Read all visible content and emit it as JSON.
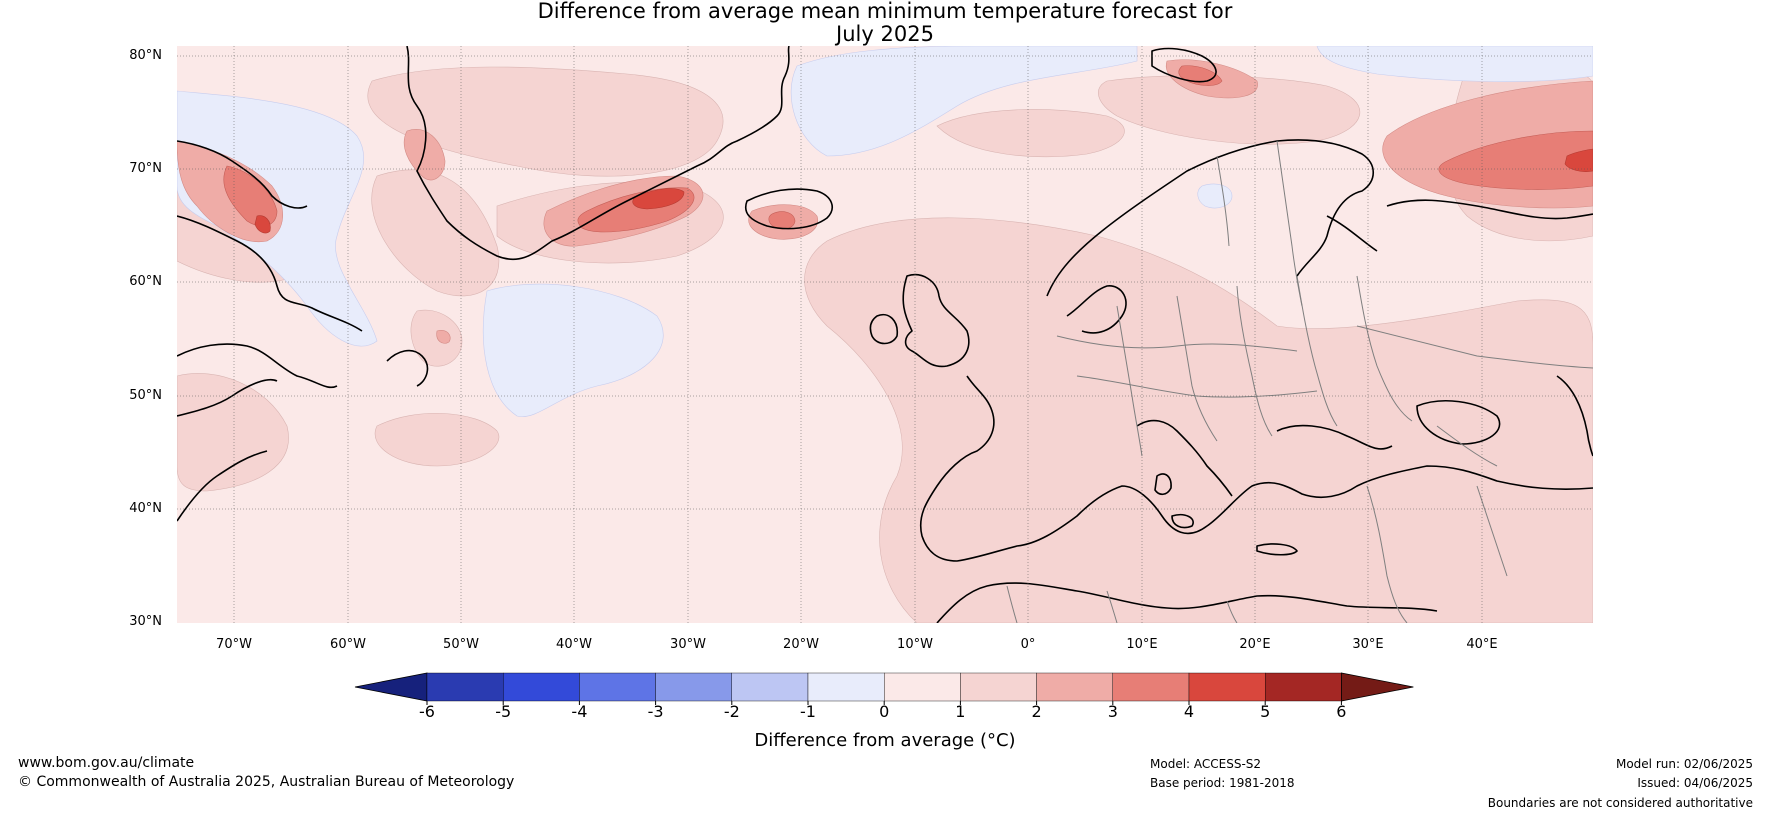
{
  "title": {
    "line1": "Difference from average mean minimum temperature forecast for",
    "line2": "July 2025"
  },
  "map": {
    "lat_labels": [
      "80°N",
      "70°N",
      "60°N",
      "50°N",
      "40°N",
      "30°N"
    ],
    "lon_labels": [
      "70°W",
      "60°W",
      "50°W",
      "40°W",
      "30°W",
      "20°W",
      "10°W",
      "0°",
      "10°E",
      "20°E",
      "30°E",
      "40°E"
    ],
    "regions": [
      "greenland",
      "iceland",
      "scandinavia",
      "europe",
      "north-africa",
      "north-america",
      "british-isles",
      "svalbard",
      "russia"
    ]
  },
  "colorbar": {
    "title": "Difference from average (°C)",
    "ticks": [
      "-6",
      "-5",
      "-4",
      "-3",
      "-2",
      "-1",
      "0",
      "1",
      "2",
      "3",
      "4",
      "5",
      "6"
    ],
    "colors": [
      "#16217c",
      "#2a3bb1",
      "#334ad9",
      "#5e74e6",
      "#8799ea",
      "#bdc6f3",
      "#e8ecfb",
      "#fbe9e8",
      "#f5d4d2",
      "#efaca7",
      "#e77e76",
      "#d9473d",
      "#a42724",
      "#741b16"
    ]
  },
  "footer": {
    "website": "www.bom.gov.au/climate",
    "copyright": "© Commonwealth of Australia 2025, Australian Bureau of Meteorology",
    "model": "Model: ACCESS-S2",
    "base_period": "Base period: 1981-2018",
    "model_run": "Model run: 02/06/2025",
    "issued": "Issued: 04/06/2025",
    "disclaimer": "Boundaries are not considered authoritative"
  }
}
